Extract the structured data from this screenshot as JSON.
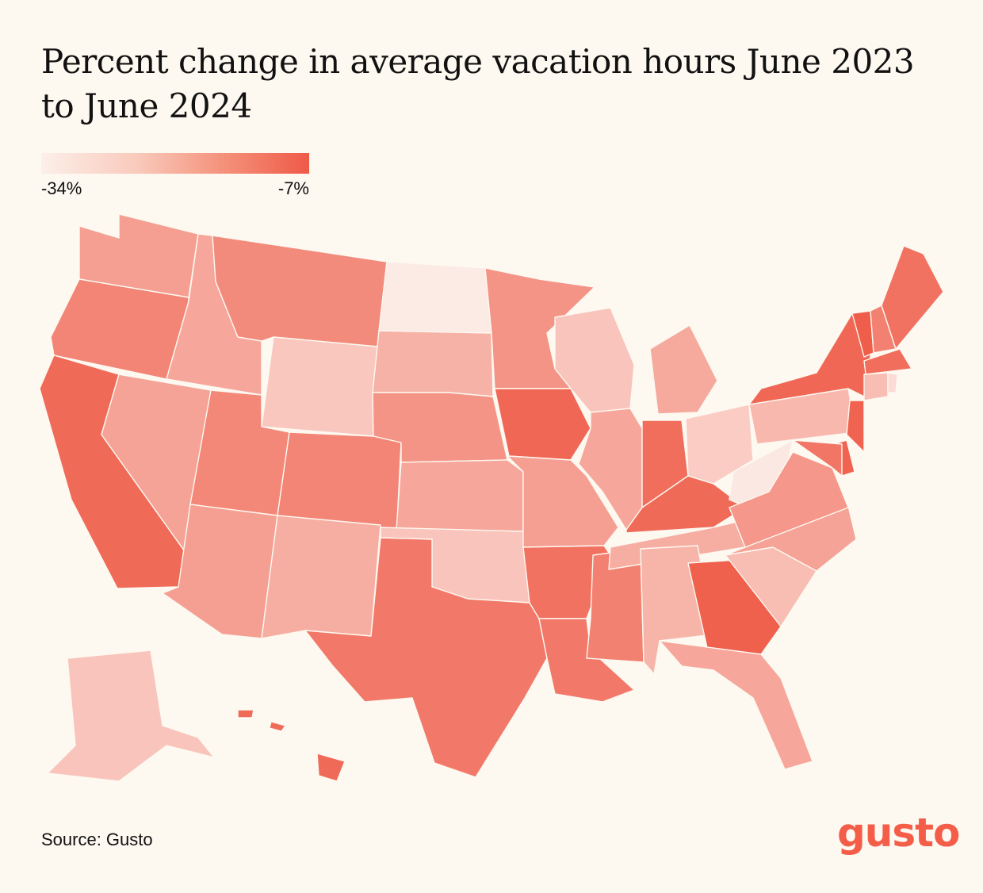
{
  "title": "Percent change in average vacation hours June 2023 to June 2024",
  "legend": {
    "min_label": "-34%",
    "max_label": "-7%",
    "colors": [
      "#fcefe9",
      "#f9cbbd",
      "#f48e77",
      "#ef5a47"
    ]
  },
  "source": "Source: Gusto",
  "logo_text": "gusto",
  "shading_scale": {
    "min_percent": -34,
    "max_percent": -7,
    "note_colors": {
      "lightest": "#fdf1ec",
      "darkest": "#ef5b48"
    }
  },
  "states": [
    {
      "id": "WA",
      "level": 0.55
    },
    {
      "id": "OR",
      "level": 0.72
    },
    {
      "id": "CA",
      "level": 0.9
    },
    {
      "id": "ID",
      "level": 0.5
    },
    {
      "id": "NV",
      "level": 0.52
    },
    {
      "id": "MT",
      "level": 0.68
    },
    {
      "id": "WY",
      "level": 0.28
    },
    {
      "id": "UT",
      "level": 0.7
    },
    {
      "id": "AZ",
      "level": 0.55
    },
    {
      "id": "CO",
      "level": 0.72
    },
    {
      "id": "NM",
      "level": 0.45
    },
    {
      "id": "ND",
      "level": 0.05
    },
    {
      "id": "SD",
      "level": 0.42
    },
    {
      "id": "NE",
      "level": 0.62
    },
    {
      "id": "KS",
      "level": 0.5
    },
    {
      "id": "OK",
      "level": 0.3
    },
    {
      "id": "TX",
      "level": 0.8
    },
    {
      "id": "MN",
      "level": 0.62
    },
    {
      "id": "IA",
      "level": 0.92
    },
    {
      "id": "MO",
      "level": 0.55
    },
    {
      "id": "AR",
      "level": 0.85
    },
    {
      "id": "LA",
      "level": 0.8
    },
    {
      "id": "WI",
      "level": 0.3
    },
    {
      "id": "IL",
      "level": 0.5
    },
    {
      "id": "MS",
      "level": 0.75
    },
    {
      "id": "MI",
      "level": 0.48
    },
    {
      "id": "IN",
      "level": 0.88
    },
    {
      "id": "KY",
      "level": 0.9
    },
    {
      "id": "TN",
      "level": 0.45
    },
    {
      "id": "AL",
      "level": 0.4
    },
    {
      "id": "OH",
      "level": 0.25
    },
    {
      "id": "WV",
      "level": 0.06
    },
    {
      "id": "GA",
      "level": 0.97
    },
    {
      "id": "FL",
      "level": 0.5
    },
    {
      "id": "SC",
      "level": 0.35
    },
    {
      "id": "NC",
      "level": 0.52
    },
    {
      "id": "VA",
      "level": 0.6
    },
    {
      "id": "PA",
      "level": 0.38
    },
    {
      "id": "NY",
      "level": 0.92
    },
    {
      "id": "VT",
      "level": 0.98
    },
    {
      "id": "NH",
      "level": 0.75
    },
    {
      "id": "ME",
      "level": 0.85
    },
    {
      "id": "MA",
      "level": 0.88
    },
    {
      "id": "CT",
      "level": 0.35
    },
    {
      "id": "RI",
      "level": 0.15
    },
    {
      "id": "NJ",
      "level": 0.95
    },
    {
      "id": "DE",
      "level": 0.95
    },
    {
      "id": "MD",
      "level": 0.82
    },
    {
      "id": "AK",
      "level": 0.3
    },
    {
      "id": "HI",
      "level": 0.9
    }
  ]
}
